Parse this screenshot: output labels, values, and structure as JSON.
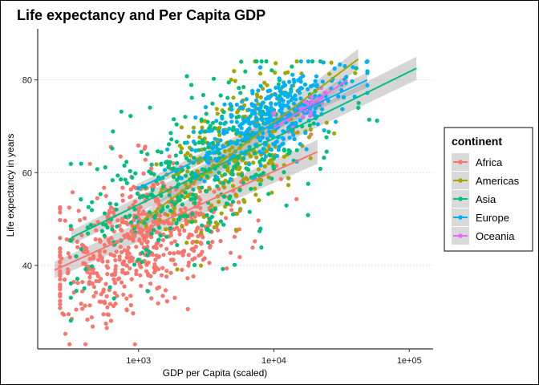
{
  "chart_data": {
    "type": "scatter",
    "title": "Life expectancy and Per Capita GDP",
    "xlabel": "GDP per Capita (scaled)",
    "ylabel": "Life expectancy in years",
    "x_scale": "log10",
    "xlim": [
      180,
      150000
    ],
    "ylim": [
      22,
      91
    ],
    "x_ticks": [
      {
        "value": 1000,
        "label": "1e+03"
      },
      {
        "value": 10000,
        "label": "1e+04"
      },
      {
        "value": 100000,
        "label": "1e+05"
      }
    ],
    "y_ticks": [
      {
        "value": 40,
        "label": "40"
      },
      {
        "value": 60,
        "label": "60"
      },
      {
        "value": 80,
        "label": "80"
      }
    ],
    "grid": "horizontal dotted major gridlines",
    "legend": {
      "title": "continent",
      "placement": "right",
      "entries": [
        "Africa",
        "Americas",
        "Asia",
        "Europe",
        "Oceania"
      ]
    },
    "series": [
      {
        "name": "Africa",
        "color": "#F8766D",
        "fit": {
          "x_range": [
            240,
            21000
          ],
          "y_range": [
            39,
            64.5
          ],
          "band_width": [
            1.8,
            2.6
          ]
        },
        "cloud": {
          "log_x_range": [
            2.42,
            4.35
          ],
          "center_log_x": 3.05,
          "spread_log_x": 0.38,
          "slope_y_per_log_x": 13.2,
          "intercept": 6.0,
          "noise_y": 7.5,
          "count": 620
        }
      },
      {
        "name": "Americas",
        "color": "#A3A500",
        "fit": {
          "x_range": [
            900,
            42000
          ],
          "y_range": [
            48,
            84.5
          ],
          "band_width": [
            1.5,
            2.2
          ]
        },
        "cloud": {
          "log_x_range": [
            3.05,
            4.6
          ],
          "center_log_x": 3.75,
          "spread_log_x": 0.3,
          "slope_y_per_log_x": 17.5,
          "intercept": -1.0,
          "noise_y": 7.0,
          "count": 290
        }
      },
      {
        "name": "Asia",
        "color": "#00BF7D",
        "fit": {
          "x_range": [
            320,
            113000
          ],
          "y_range": [
            46,
            82.5
          ],
          "band_width": [
            1.5,
            2.5
          ]
        },
        "cloud": {
          "log_x_range": [
            2.5,
            5.06
          ],
          "center_log_x": 3.45,
          "spread_log_x": 0.45,
          "slope_y_per_log_x": 13.0,
          "intercept": 15.0,
          "noise_y": 8.5,
          "count": 380
        }
      },
      {
        "name": "Europe",
        "color": "#00B0F6",
        "fit": {
          "x_range": [
            970,
            49000
          ],
          "y_range": [
            56.5,
            80
          ],
          "band_width": [
            1.0,
            1.6
          ]
        },
        "cloud": {
          "log_x_range": [
            3.0,
            4.69
          ],
          "center_log_x": 4.0,
          "spread_log_x": 0.3,
          "slope_y_per_log_x": 12.0,
          "intercept": 24.0,
          "noise_y": 3.8,
          "count": 360
        }
      },
      {
        "name": "Oceania",
        "color": "#E76BF3",
        "fit": {
          "x_range": [
            10000,
            35000
          ],
          "y_range": [
            69.5,
            80
          ],
          "band_width": [
            0.8,
            1.2
          ]
        },
        "cloud": {
          "log_x_range": [
            4.0,
            4.55
          ],
          "center_log_x": 4.25,
          "spread_log_x": 0.14,
          "slope_y_per_log_x": 16.0,
          "intercept": 6.0,
          "noise_y": 1.8,
          "count": 24
        }
      }
    ]
  }
}
